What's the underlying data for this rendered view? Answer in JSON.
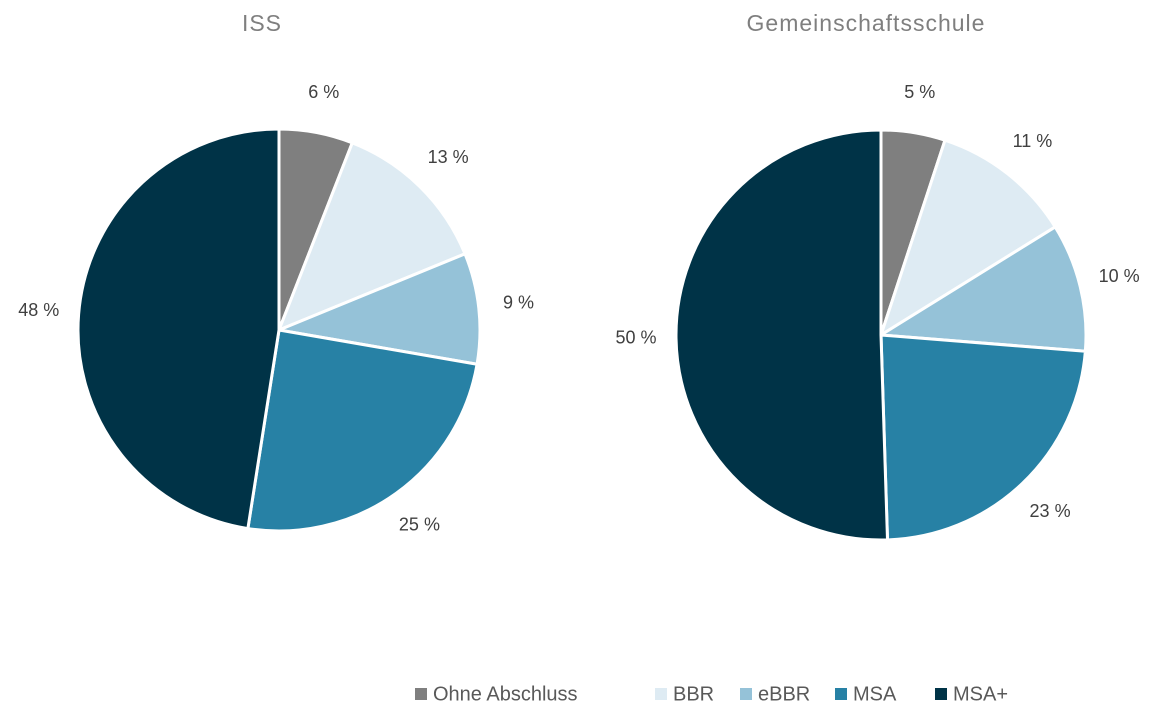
{
  "chart_data": [
    {
      "type": "pie",
      "title": "ISS",
      "categories": [
        "Ohne Abschluss",
        "BBR",
        "eBBR",
        "MSA",
        "MSA+"
      ],
      "values": [
        6,
        13,
        9,
        25,
        48
      ],
      "value_labels": [
        "6 %",
        "13 %",
        "9 %",
        "25 %",
        "48 %"
      ],
      "colors": [
        "#7f7f7f",
        "#deebf3",
        "#95c2d8",
        "#2781a5",
        "#003347"
      ]
    },
    {
      "type": "pie",
      "title": "Gemeinschaftsschule",
      "categories": [
        "Ohne Abschluss",
        "BBR",
        "eBBR",
        "MSA",
        "MSA+"
      ],
      "values": [
        5,
        11,
        10,
        23,
        50
      ],
      "value_labels": [
        "5 %",
        "11 %",
        "10 %",
        "23 %",
        "50 %"
      ],
      "colors": [
        "#7f7f7f",
        "#deebf3",
        "#95c2d8",
        "#2781a5",
        "#003347"
      ]
    }
  ]
}
